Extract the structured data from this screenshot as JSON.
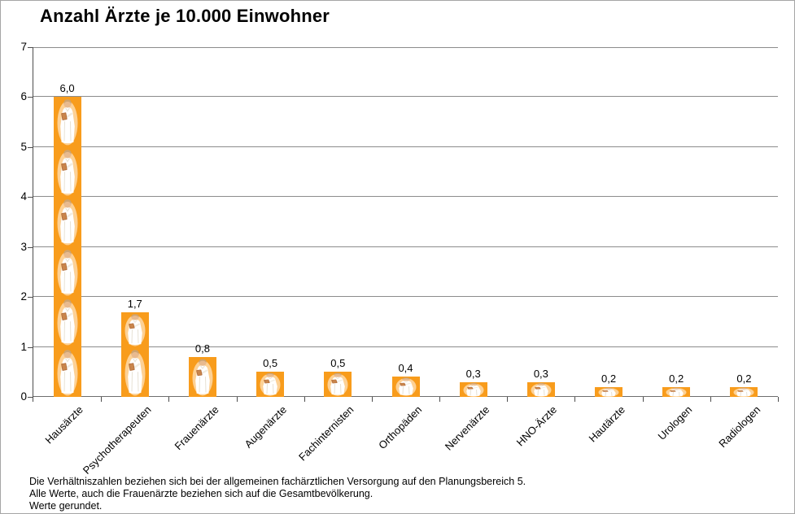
{
  "title": "Anzahl Ärzte je 10.000 Einwohner",
  "colors": {
    "bar": "#F89C1C",
    "bar_halo": "#FFE3BD",
    "coat": "#FFFFFF",
    "coat_shade": "#E7E1D4",
    "skin": "#E8BA8F",
    "hair": "#CDA36F",
    "clipboard": "#B06A38",
    "clipboard_light": "#C9854C",
    "gridline": "#8C8C8C",
    "axis": "#4D4D4D",
    "frame": "#A6A6A6"
  },
  "chart_data": {
    "type": "bar",
    "title": "Anzahl Ärzte je 10.000 Einwohner",
    "categories": [
      "Hausärzte",
      "Psychotherapeuten",
      "Frauenärzte",
      "Augenärzte",
      "Fachinternisten",
      "Orthopäden",
      "Nervenärzte",
      "HNO-Ärzte",
      "Hautärzte",
      "Urologen",
      "Radiologen"
    ],
    "values": [
      6.0,
      1.7,
      0.8,
      0.5,
      0.5,
      0.4,
      0.3,
      0.3,
      0.2,
      0.2,
      0.2
    ],
    "value_labels": [
      "6,0",
      "1,7",
      "0,8",
      "0,5",
      "0,5",
      "0,4",
      "0,3",
      "0,3",
      "0,2",
      "0,2",
      "0,2"
    ],
    "xlabel": "",
    "ylabel": "",
    "ylim": [
      0,
      7
    ],
    "y_ticks": [
      0,
      1,
      2,
      3,
      4,
      5,
      6,
      7
    ],
    "grid": true,
    "legend": "none",
    "bar_fill": "stacked doctor pictogram, one figure per unit"
  },
  "footnote": {
    "lines": [
      "Die Verhältniszahlen beziehen sich bei der allgemeinen fachärztlichen Versorgung auf den Planungsbereich 5.",
      "Alle Werte, auch die Frauenärzte beziehen sich auf die Gesamtbevölkerung.",
      "Werte gerundet."
    ]
  }
}
